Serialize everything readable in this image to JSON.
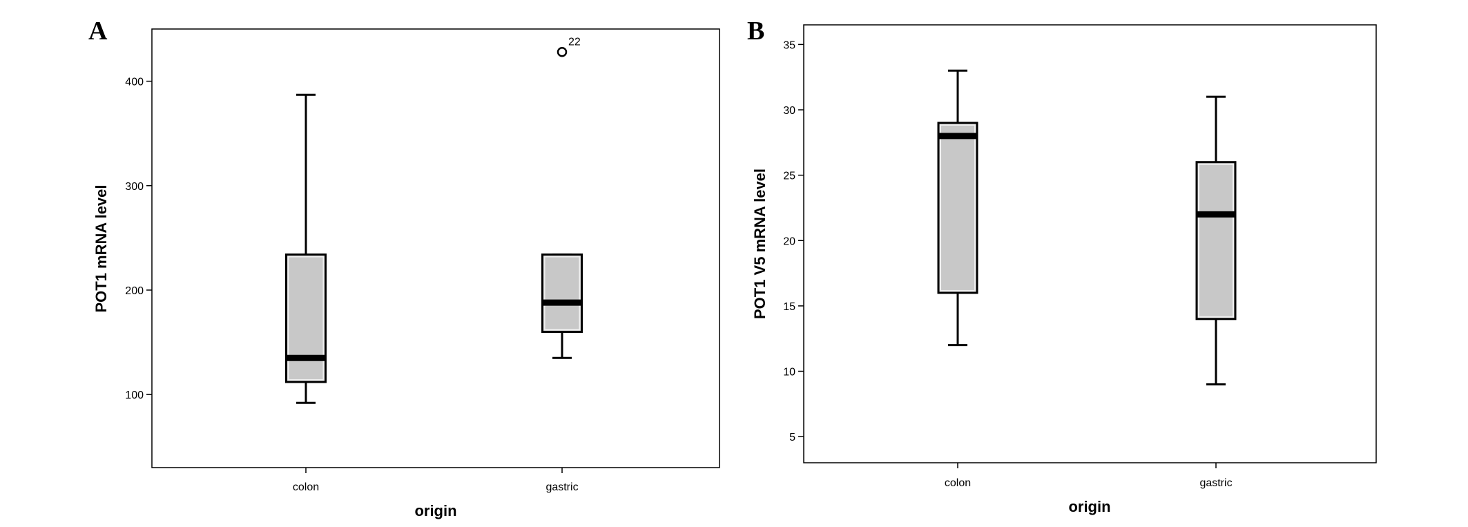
{
  "chart_data": [
    {
      "panel": "A",
      "type": "box",
      "title": "",
      "xlabel": "origin",
      "ylabel": "POT1 mRNA level",
      "categories": [
        "colon",
        "gastric"
      ],
      "ylim": [
        30,
        450
      ],
      "yticks": [
        100,
        200,
        300,
        400
      ],
      "grid": false,
      "boxes": [
        {
          "category": "colon",
          "min": 92,
          "q1": 112,
          "median": 135,
          "q3": 234,
          "max": 387
        },
        {
          "category": "gastric",
          "min": 135,
          "q1": 160,
          "median": 188,
          "q3": 234,
          "max": 234,
          "outliers": [
            {
              "value": 428,
              "label": "22"
            }
          ]
        }
      ],
      "colors": {
        "box_fill": "#c8c8c8",
        "box_stroke": "#000000",
        "median": "#000000"
      }
    },
    {
      "panel": "B",
      "type": "box",
      "title": "",
      "xlabel": "origin",
      "ylabel": "POT1 V5 mRNA level",
      "categories": [
        "colon",
        "gastric"
      ],
      "ylim": [
        3,
        36.5
      ],
      "yticks": [
        5,
        10,
        15,
        20,
        25,
        30,
        35
      ],
      "grid": false,
      "boxes": [
        {
          "category": "colon",
          "min": 12,
          "q1": 16,
          "median": 28,
          "q3": 29,
          "max": 33
        },
        {
          "category": "gastric",
          "min": 9,
          "q1": 14,
          "median": 22,
          "q3": 26,
          "max": 31
        }
      ],
      "colors": {
        "box_fill": "#c8c8c8",
        "box_stroke": "#000000",
        "median": "#000000"
      }
    }
  ]
}
